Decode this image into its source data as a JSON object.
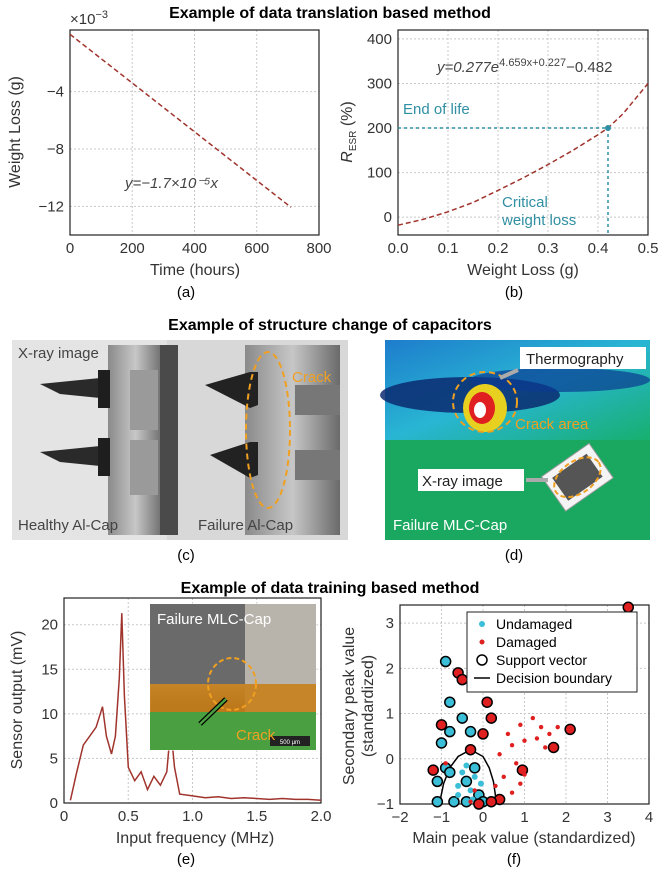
{
  "sections": {
    "top": "Example of data translation based method",
    "middle": "Example of structure change of capacitors",
    "bottom": "Example of data training based method"
  },
  "panels": {
    "a": "(a)",
    "b": "(b)",
    "c": "(c)",
    "d": "(d)",
    "e": "(e)",
    "f": "(f)"
  },
  "images": {
    "c": {
      "xray": "X-ray image",
      "healthy": "Healthy Al-Cap",
      "failure": "Failure Al-Cap",
      "crack": "Crack"
    },
    "d": {
      "thermography": "Thermography",
      "crack_area": "Crack area",
      "xray": "X-ray image",
      "label": "Failure MLC-Cap"
    },
    "e_inset": {
      "title": "Failure MLC-Cap",
      "crack": "Crack",
      "scale": "500 μm"
    }
  },
  "colors": {
    "curve": "#a0342d",
    "teal": "#2f8fa3",
    "undamaged": "#3bbfd8",
    "damaged": "#e02020",
    "orange": "#f0a020"
  },
  "chart_data": [
    {
      "id": "a",
      "type": "line",
      "xlabel": "Time (hours)",
      "ylabel": "Weight Loss (g)",
      "scale_note": "×10",
      "scale_exp": "−3",
      "xlim": [
        0,
        800
      ],
      "ylim": [
        -14,
        0.3
      ],
      "xticks": [
        0,
        200,
        400,
        600,
        800
      ],
      "yticks": [
        -4,
        -8,
        -12
      ],
      "ytick_labels": [
        "−4",
        "−8",
        "−12"
      ],
      "x": [
        0,
        710
      ],
      "y": [
        0,
        -12.07
      ],
      "equation": "y=−1.7×10⁻⁵x"
    },
    {
      "id": "b",
      "type": "line",
      "xlabel": "Weight Loss (g)",
      "ylabel": "R",
      "ylabel_sub": "ESR",
      "ylabel_unit": " (%)",
      "xlim": [
        0,
        0.5
      ],
      "ylim": [
        -40,
        420
      ],
      "xticks": [
        0,
        0.1,
        0.2,
        0.3,
        0.4,
        0.5
      ],
      "xtick_labels": [
        "0.0",
        "0.1",
        "0.2",
        "0.3",
        "0.4",
        "0.5"
      ],
      "yticks": [
        0,
        100,
        200,
        300,
        400
      ],
      "equation": "y=0.277e",
      "equation_exp": "4.659x+0.227",
      "equation_tail": "−0.482",
      "end_of_life_label": "End of life",
      "critical_label_1": "Critical",
      "critical_label_2": "weight loss",
      "critical_point": {
        "x": 0.42,
        "y": 200
      },
      "x": [
        0,
        0.05,
        0.1,
        0.15,
        0.2,
        0.25,
        0.3,
        0.35,
        0.4,
        0.42,
        0.45,
        0.5
      ],
      "y": [
        -18,
        -5,
        12,
        33,
        60,
        88,
        118,
        150,
        185,
        200,
        232,
        300
      ]
    },
    {
      "id": "e",
      "type": "line",
      "xlabel": "Input frequency (MHz)",
      "ylabel": "Sensor output (mV)",
      "xlim": [
        0,
        2.0
      ],
      "ylim": [
        0,
        23
      ],
      "xticks": [
        0,
        0.5,
        1.0,
        1.5,
        2.0
      ],
      "xtick_labels": [
        "0",
        "0.5",
        "1.0",
        "1.5",
        "2.0"
      ],
      "yticks": [
        0,
        5,
        10,
        15,
        20
      ],
      "x": [
        0.05,
        0.1,
        0.15,
        0.2,
        0.25,
        0.3,
        0.33,
        0.37,
        0.4,
        0.43,
        0.45,
        0.47,
        0.5,
        0.55,
        0.6,
        0.65,
        0.7,
        0.75,
        0.8,
        0.83,
        0.86,
        0.9,
        1.0,
        1.1,
        1.2,
        1.3,
        1.4,
        1.5,
        1.6,
        1.7,
        1.8,
        1.9,
        2.0
      ],
      "y": [
        0.3,
        3.5,
        6.5,
        7.5,
        8.5,
        10.8,
        7.5,
        5.5,
        7.5,
        14,
        21.3,
        12,
        4,
        2.5,
        3.5,
        1.5,
        3,
        2,
        3.5,
        8.5,
        4,
        1,
        0.8,
        0.6,
        0.7,
        0.5,
        0.6,
        0.5,
        0.4,
        0.5,
        0.4,
        0.4,
        0.3
      ]
    },
    {
      "id": "f",
      "type": "scatter",
      "xlabel": "Main peak value (standardized)",
      "ylabel_1": "Secondary peak value",
      "ylabel_2": "(standardized)",
      "xlim": [
        -2,
        4
      ],
      "ylim": [
        -1,
        3.4
      ],
      "xticks": [
        -2,
        -1,
        0,
        1,
        2,
        3,
        4
      ],
      "xtick_labels": [
        "−2",
        "−1",
        "0",
        "1",
        "2",
        "3",
        "4"
      ],
      "yticks": [
        -1,
        0,
        1,
        2,
        3
      ],
      "ytick_labels": [
        "−1",
        "0",
        "1",
        "2",
        "3"
      ],
      "legend": [
        "Undamaged",
        "Damaged",
        "Support vector",
        "Decision boundary"
      ],
      "undamaged_sv": [
        [
          -0.9,
          2.15
        ],
        [
          -0.8,
          1.25
        ],
        [
          -0.8,
          0.6
        ],
        [
          -0.5,
          0.9
        ],
        [
          -0.3,
          0.6
        ],
        [
          -1.0,
          0.35
        ],
        [
          -0.9,
          -0.2
        ],
        [
          -0.4,
          -0.5
        ],
        [
          -0.7,
          -0.95
        ],
        [
          -1.1,
          -0.95
        ],
        [
          -0.4,
          -0.95
        ],
        [
          -0.2,
          -0.2
        ],
        [
          -0.1,
          -0.8
        ],
        [
          0.0,
          -0.95
        ],
        [
          -0.8,
          -0.3
        ],
        [
          -1.1,
          -0.5
        ]
      ],
      "undamaged": [
        [
          -0.6,
          -0.6
        ],
        [
          -0.5,
          -0.3
        ],
        [
          -0.3,
          -0.7
        ],
        [
          -0.2,
          -0.4
        ],
        [
          -0.6,
          -0.8
        ],
        [
          -0.4,
          -0.15
        ],
        [
          -0.25,
          -0.9
        ],
        [
          -0.05,
          -0.55
        ]
      ],
      "damaged_sv": [
        [
          -0.6,
          1.9
        ],
        [
          -0.5,
          1.75
        ],
        [
          -1.0,
          0.75
        ],
        [
          0.1,
          1.25
        ],
        [
          0.2,
          0.9
        ],
        [
          0.0,
          0.55
        ],
        [
          -0.3,
          0.2
        ],
        [
          -1.2,
          -0.25
        ],
        [
          0.4,
          -0.9
        ],
        [
          0.95,
          -0.25
        ],
        [
          1.7,
          0.25
        ],
        [
          2.1,
          0.65
        ],
        [
          3.5,
          3.35
        ],
        [
          -0.1,
          -1.0
        ],
        [
          0.2,
          -0.95
        ]
      ],
      "damaged": [
        [
          0.8,
          1.95
        ],
        [
          0.6,
          1.6
        ],
        [
          0.9,
          0.75
        ],
        [
          1.2,
          0.9
        ],
        [
          1.4,
          0.7
        ],
        [
          1.6,
          0.55
        ],
        [
          1.8,
          0.7
        ],
        [
          1.3,
          0.45
        ],
        [
          1.5,
          0.25
        ],
        [
          1.0,
          0.4
        ],
        [
          0.7,
          0.3
        ],
        [
          0.6,
          0.55
        ],
        [
          0.8,
          -0.1
        ],
        [
          1.0,
          -0.35
        ],
        [
          0.9,
          -0.55
        ],
        [
          0.5,
          -0.4
        ],
        [
          0.3,
          -0.6
        ],
        [
          0.4,
          0.1
        ],
        [
          0.7,
          -0.75
        ],
        [
          -0.3,
          -0.95
        ],
        [
          -0.9,
          -0.1
        ],
        [
          -0.2,
          -0.7
        ]
      ],
      "boundary_x": [
        -1.05,
        -0.95,
        -0.8,
        -0.6,
        -0.4,
        -0.2,
        0.0,
        0.15,
        0.25,
        0.3,
        0.3
      ],
      "boundary_y": [
        -1.0,
        -0.55,
        -0.2,
        0.05,
        0.15,
        0.15,
        0.05,
        -0.2,
        -0.5,
        -0.8,
        -1.0
      ]
    }
  ]
}
